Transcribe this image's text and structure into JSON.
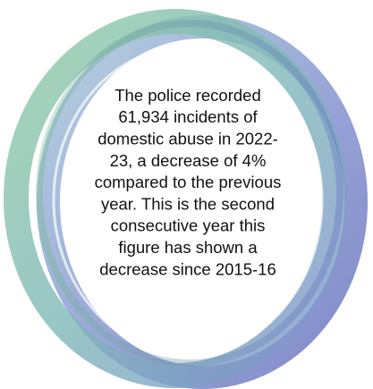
{
  "text": {
    "lines": [
      "The police recorded",
      "61,934 incidents of",
      "domestic abuse in 2022-",
      "23, a decrease of 4%",
      "compared to the previous",
      "year. This is the second",
      "consecutive year this",
      "figure has shown a",
      "decrease since 2015-16"
    ]
  }
}
